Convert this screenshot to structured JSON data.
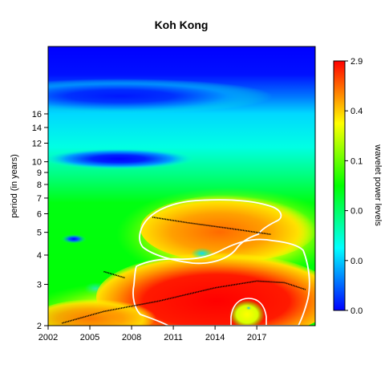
{
  "chart_data": {
    "type": "heatmap",
    "title": "Koh Kong",
    "xlabel": "",
    "ylabel": "period (in years)",
    "x_ticks": [
      "2002",
      "2005",
      "2008",
      "2011",
      "2014",
      "2017"
    ],
    "x_tick_values": [
      2002,
      2005,
      2008,
      2011,
      2014,
      2017
    ],
    "xlim": [
      2002,
      2021.2
    ],
    "y_ticks": [
      "2",
      "3",
      "4",
      "5",
      "6",
      "7",
      "8",
      "9",
      "10",
      "12",
      "14",
      "16"
    ],
    "y_tick_values": [
      2,
      3,
      4,
      5,
      6,
      7,
      8,
      9,
      10,
      12,
      14,
      16
    ],
    "ylim": [
      2,
      31
    ],
    "y_scale": "log",
    "colorbar": {
      "label": "wavelet power levels",
      "tick_labels": [
        "0.0",
        "0.0",
        "0.0",
        "0.1",
        "0.4",
        "2.9"
      ],
      "colors": [
        "#0000ff",
        "#00ffff",
        "#00ff00",
        "#ffff00",
        "#ff0000"
      ]
    },
    "colors": {
      "significance_contour": "#ffffff",
      "ridge": "#000000"
    },
    "high_power_regions": [
      {
        "x_range": [
          2008.8,
          2019.5
        ],
        "y_range": [
          3.8,
          6.3
        ],
        "level": "moderate"
      },
      {
        "x_range": [
          2006.2,
          2021.0
        ],
        "y_range": [
          2.0,
          4.1
        ],
        "level": "high"
      }
    ],
    "low_power_regions": [
      {
        "x_center": 2006.5,
        "y_center": 10.1,
        "level": "minimum"
      },
      {
        "x_center": 2004.0,
        "y_center": 4.6,
        "level": "low"
      }
    ],
    "ridges": [
      {
        "points": [
          [
            2009.5,
            5.8
          ],
          [
            2012,
            5.5
          ],
          [
            2015,
            5.2
          ],
          [
            2018,
            4.9
          ]
        ]
      },
      {
        "points": [
          [
            2003,
            2.05
          ],
          [
            2006,
            2.3
          ],
          [
            2010,
            2.55
          ],
          [
            2014,
            2.9
          ],
          [
            2017,
            3.1
          ],
          [
            2019,
            3.05
          ],
          [
            2020.5,
            2.85
          ]
        ]
      },
      {
        "points": [
          [
            2006,
            3.4
          ],
          [
            2007.5,
            3.2
          ]
        ]
      }
    ]
  }
}
